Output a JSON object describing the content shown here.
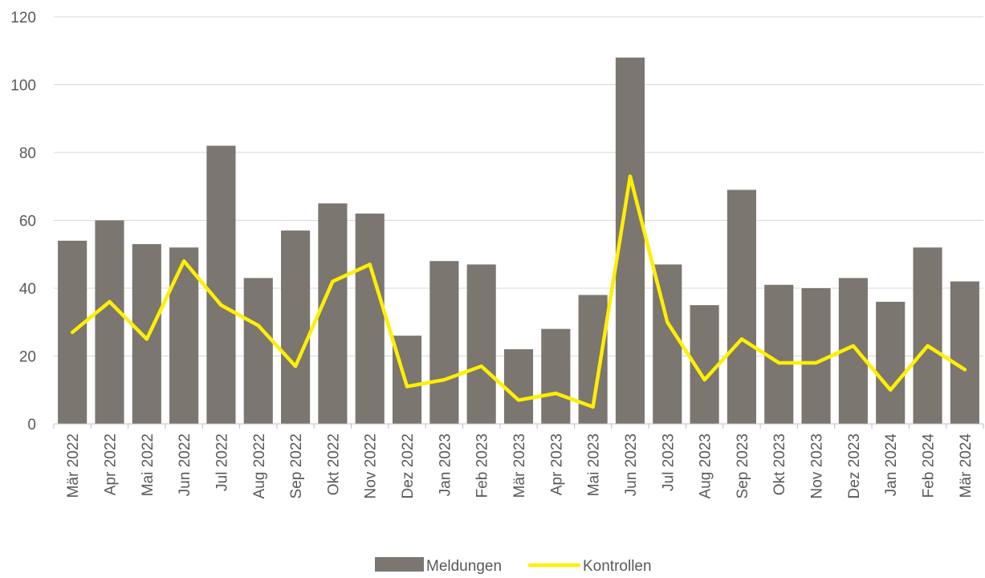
{
  "chart_data": {
    "type": "bar",
    "title": "",
    "xlabel": "",
    "ylabel": "",
    "ylim": [
      0,
      120
    ],
    "yticks": [
      0,
      20,
      40,
      60,
      80,
      100,
      120
    ],
    "grid": true,
    "legend_position": "bottom",
    "categories": [
      "Mär 2022",
      "Apr 2022",
      "Mai 2022",
      "Jun 2022",
      "Jul 2022",
      "Aug 2022",
      "Sep 2022",
      "Okt 2022",
      "Nov 2022",
      "Dez 2022",
      "Jan 2023",
      "Feb 2023",
      "Mär 2023",
      "Apr 2023",
      "Mai 2023",
      "Jun 2023",
      "Jul 2023",
      "Aug 2023",
      "Sep 2023",
      "Okt 2023",
      "Nov 2023",
      "Dez 2023",
      "Jan 2024",
      "Feb 2024",
      "Mär 2024"
    ],
    "series": [
      {
        "name": "Meldungen",
        "type": "bar",
        "color": "#7b7670",
        "values": [
          54,
          60,
          53,
          52,
          82,
          43,
          57,
          65,
          62,
          26,
          48,
          47,
          22,
          28,
          38,
          108,
          47,
          35,
          69,
          41,
          40,
          43,
          36,
          52,
          42
        ]
      },
      {
        "name": "Kontrollen",
        "type": "line",
        "color": "#ffef00",
        "values": [
          27,
          36,
          25,
          48,
          35,
          29,
          17,
          42,
          47,
          11,
          13,
          17,
          7,
          9,
          5,
          73,
          30,
          13,
          25,
          18,
          18,
          23,
          10,
          23,
          16
        ]
      }
    ]
  }
}
